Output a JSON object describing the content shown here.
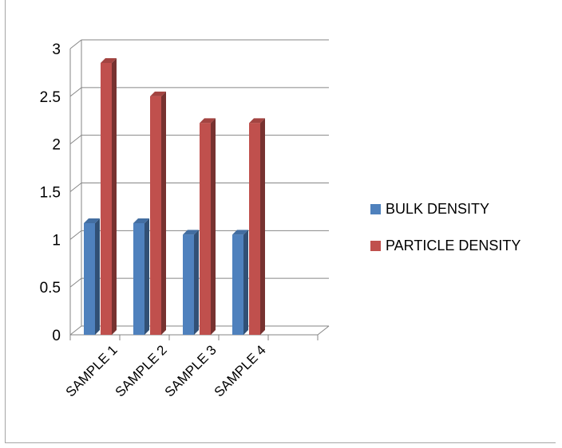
{
  "chart_data": {
    "type": "bar",
    "title": "",
    "xlabel": "",
    "ylabel": "",
    "categories": [
      "SAMPLE 1",
      "SAMPLE 2",
      "SAMPLE 3",
      "SAMPLE 4"
    ],
    "series": [
      {
        "name": "BULK DENSITY",
        "values": [
          1.17,
          1.17,
          1.05,
          1.05
        ],
        "color": "#4f81bd"
      },
      {
        "name": "PARTICLE DENSITY",
        "values": [
          2.85,
          2.5,
          2.22,
          2.22
        ],
        "color": "#c0504d"
      }
    ],
    "ylim": [
      0,
      3
    ],
    "yticks": [
      "0",
      "0.5",
      "1",
      "1.5",
      "2",
      "2.5",
      "3"
    ],
    "grid": true,
    "legend_position": "right",
    "style": "3d-clustered-column"
  }
}
